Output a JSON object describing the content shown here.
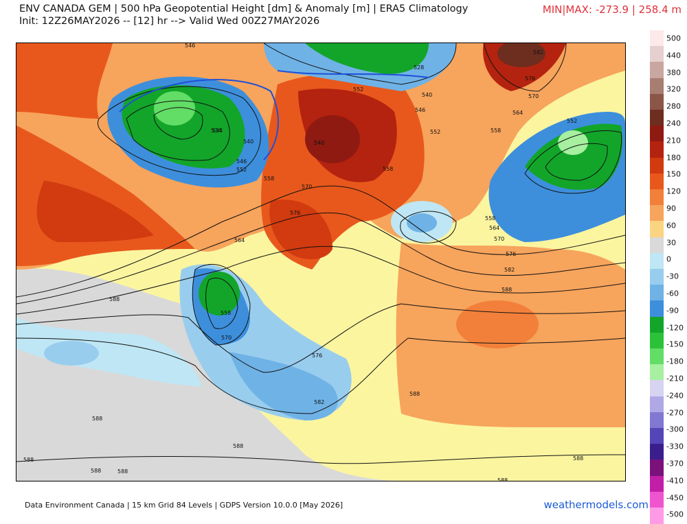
{
  "header": {
    "title_line1": "ENV CANADA GEM | 500 hPa Geopotential Height [dm] & Anomaly [m] | ERA5 Climatology",
    "title_line2": "Init: 12Z26MAY2026 -- [12] hr --> Valid Wed 00Z27MAY2026",
    "minmax": "MIN|MAX: -273.9 | 258.4 m"
  },
  "footer": {
    "source": "Data Environment Canada | 15 km Grid 84 Levels | GDPS Version 10.0.0 [May 2026]",
    "brand": "weathermodels.com"
  },
  "legend": {
    "levels": [
      "500",
      "440",
      "380",
      "320",
      "280",
      "240",
      "210",
      "180",
      "150",
      "120",
      "90",
      "60",
      "30",
      "0",
      "-30",
      "-60",
      "-90",
      "-120",
      "-150",
      "-180",
      "-210",
      "-240",
      "-270",
      "-300",
      "-330",
      "-370",
      "-410",
      "-450",
      "-500"
    ],
    "colors": [
      "#fde9e9",
      "#e6cfcf",
      "#c9a6a0",
      "#a87d72",
      "#8a5647",
      "#6d2d1f",
      "#8e1a12",
      "#b4230f",
      "#d23a10",
      "#e8581c",
      "#f2803a",
      "#f7a45c",
      "#fbd482",
      "#d9d9d9",
      "#bfe6f4",
      "#99cdee",
      "#6fb2e6",
      "#3d8fdc",
      "#12a52a",
      "#2bc23a",
      "#62dd66",
      "#a6f0a0",
      "#d7d4f2",
      "#b0a8e6",
      "#8178d2",
      "#5546b8",
      "#3b1e8e",
      "#7b127c",
      "#c21fa8",
      "#ee55cf",
      "#ff9be6"
    ]
  },
  "map": {
    "contour_labels": [
      "546",
      "528",
      "534",
      "540",
      "582",
      "576",
      "570",
      "564",
      "558",
      "552",
      "534",
      "540",
      "546",
      "552",
      "558",
      "540",
      "546",
      "552",
      "558",
      "570",
      "576",
      "558",
      "564",
      "570",
      "576",
      "582",
      "588",
      "552",
      "558",
      "564",
      "570",
      "576",
      "582",
      "588",
      "588",
      "588",
      "588",
      "588",
      "588",
      "588",
      "588",
      "588"
    ]
  }
}
